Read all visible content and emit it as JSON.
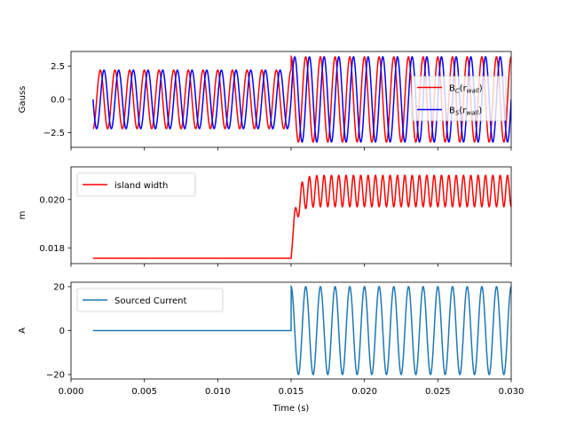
{
  "chart_data": [
    {
      "type": "line",
      "ylabel": "Gauss",
      "xlim": [
        0.0,
        0.03
      ],
      "ylim": [
        -3.6,
        3.6
      ],
      "yticks": [
        -2.5,
        0.0,
        2.5
      ],
      "ytick_labels": [
        "−2.5",
        "0.0",
        "2.5"
      ],
      "grid": false,
      "legend_position": "center-right",
      "series": [
        {
          "name_main": "B",
          "name_sub": "C",
          "name_arg": "(r",
          "name_arg_sub": "wall",
          "name_close": ")",
          "color": "#ff0000",
          "signal": "sinusoid",
          "x_start": 0.0015,
          "x_end": 0.03,
          "frequency_hz": 1000,
          "phase_deg": 90,
          "amplitude_before": 2.2,
          "amplitude_after": 3.2,
          "transition_x": 0.015
        },
        {
          "name_main": "B",
          "name_sub": "S",
          "name_arg": "(r",
          "name_arg_sub": "wall",
          "name_close": ")",
          "color": "#0000ff",
          "signal": "sinusoid",
          "x_start": 0.0015,
          "x_end": 0.03,
          "frequency_hz": 1000,
          "phase_deg": 0,
          "amplitude_before": 2.2,
          "amplitude_after": 3.2,
          "transition_x": 0.015
        }
      ]
    },
    {
      "type": "line",
      "ylabel": "m",
      "xlim": [
        0.0,
        0.03
      ],
      "ylim": [
        0.01735,
        0.02135
      ],
      "yticks": [
        0.018,
        0.02
      ],
      "ytick_labels": [
        "0.018",
        "0.020"
      ],
      "grid": false,
      "legend_position": "upper-left",
      "series": [
        {
          "name": "island width",
          "color": "#ff0000",
          "signal": "step-oscillation",
          "x_start": 0.0015,
          "x_end": 0.03,
          "level_before": 0.01757,
          "transition_x": 0.015,
          "oscillation_center": 0.02035,
          "oscillation_amplitude": 0.00065,
          "oscillation_frequency_hz": 2000
        }
      ]
    },
    {
      "type": "line",
      "ylabel": "A",
      "xlabel": "Time (s)",
      "xlim": [
        0.0,
        0.03
      ],
      "ylim": [
        -22,
        22
      ],
      "yticks": [
        -20,
        0,
        20
      ],
      "ytick_labels": [
        "−20",
        "0",
        "20"
      ],
      "xticks": [
        0.0,
        0.005,
        0.01,
        0.015,
        0.02,
        0.025,
        0.03
      ],
      "xtick_labels": [
        "0.000",
        "0.005",
        "0.010",
        "0.015",
        "0.020",
        "0.025",
        "0.030"
      ],
      "grid": false,
      "legend_position": "upper-left",
      "series": [
        {
          "name": "Sourced Current",
          "color": "#1f77b4",
          "signal": "switched-sinusoid",
          "x_start": 0.0015,
          "x_end": 0.03,
          "value_before": 0,
          "transition_x": 0.015,
          "amplitude_after": 20,
          "frequency_hz": 1000,
          "phase_deg": 90
        }
      ]
    }
  ]
}
